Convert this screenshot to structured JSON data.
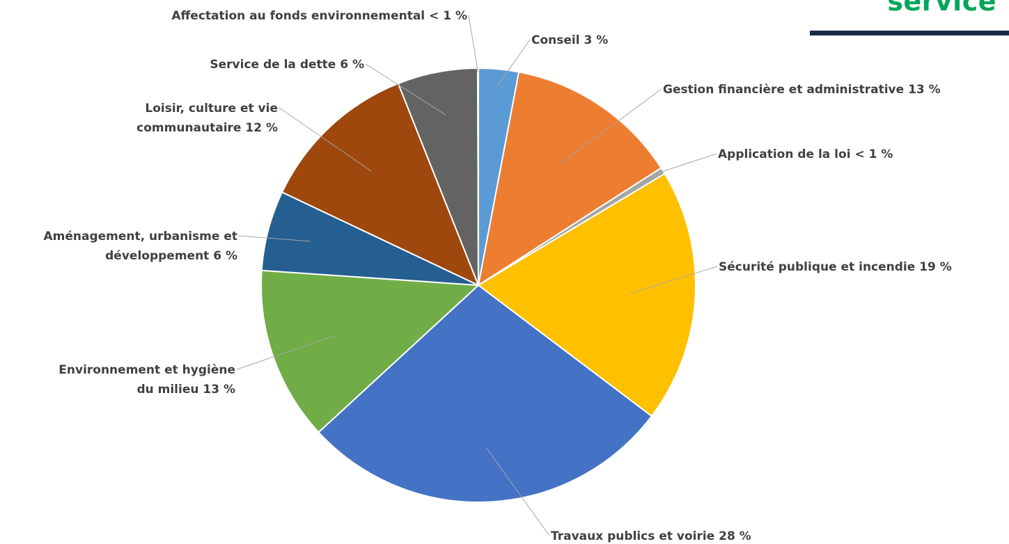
{
  "header": {
    "title": "service",
    "title_color": "#00a65a",
    "rule_color": "#1b2a4a"
  },
  "chart_data": {
    "type": "pie",
    "start_angle_deg": 0,
    "direction": "clockwise",
    "slices": [
      {
        "label": "Conseil 3 %",
        "value": 3,
        "color": "#5b9bd5"
      },
      {
        "label": "Gestion financière et administrative 13 %",
        "value": 13,
        "color": "#ed7d31"
      },
      {
        "label": "Application de la loi < 1 %",
        "value": 0.5,
        "color": "#a5a5a5"
      },
      {
        "label": "Sécurité publique et incendie 19 %",
        "value": 19,
        "color": "#ffc000"
      },
      {
        "label": "Travaux publics et voirie 28 %",
        "value": 28,
        "color": "#4472c4"
      },
      {
        "label": "Environnement et hygiène du milieu 13 %",
        "value": 13,
        "color": "#70ad47"
      },
      {
        "label": "Aménagement, urbanisme et développement 6 %",
        "value": 6,
        "color": "#255e91"
      },
      {
        "label": "Loisir, culture et vie communautaire 12 %",
        "value": 12,
        "color": "#9e480e"
      },
      {
        "label": "Service de la dette 6 %",
        "value": 6,
        "color": "#636363"
      },
      {
        "label": "Affectation au fonds environnemental < 1 %",
        "value": 0.05,
        "color": "#997300"
      }
    ],
    "label_lines": [
      [
        "Conseil 3 %"
      ],
      [
        "Gestion financière et administrative 13 %"
      ],
      [
        "Application de la loi < 1 %"
      ],
      [
        "Sécurité publique et incendie 19 %"
      ],
      [
        "Travaux publics et voirie 28 %"
      ],
      [
        "Environnement et hygiène",
        "du milieu 13 %"
      ],
      [
        "Aménagement, urbanisme et",
        "développement 6 %"
      ],
      [
        "Loisir, culture et vie",
        "communautaire 12 %"
      ],
      [
        "Service de la dette 6 %"
      ],
      [
        "Affectation au fonds environnemental < 1 %"
      ]
    ],
    "leader_color": "#a6a6a6",
    "label_color": "#404040"
  }
}
